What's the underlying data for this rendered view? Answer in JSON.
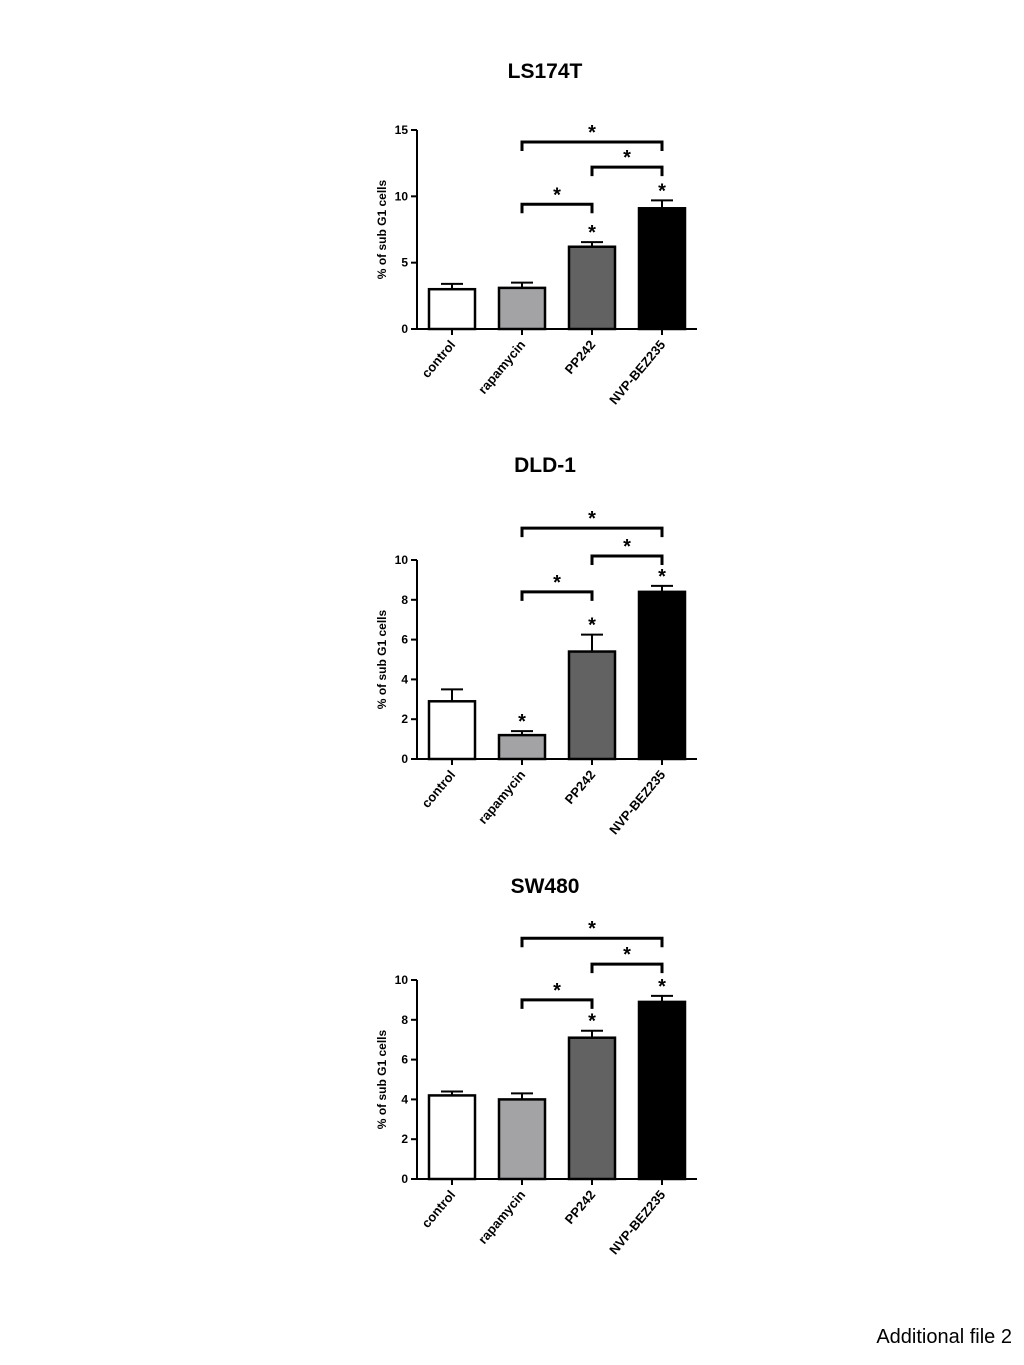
{
  "footer": {
    "label": "Additional file 2"
  },
  "colors": {
    "control": "#ffffff",
    "rapamycin": "#a3a3a6",
    "PP242": "#626262",
    "NVP-BEZ235": "#000000"
  },
  "chart_data": [
    {
      "type": "bar",
      "title": "LS174T",
      "ylabel": "% of sub G1 cells",
      "categories": [
        "control",
        "rapamycin",
        "PP242",
        "NVP-BEZ235"
      ],
      "values": [
        3.0,
        3.1,
        6.2,
        9.1
      ],
      "errors": [
        0.4,
        0.4,
        0.35,
        0.6
      ],
      "ylim": [
        0,
        15
      ],
      "yticks": [
        0,
        5,
        10,
        15
      ],
      "bar_marks": [
        "",
        "",
        "*",
        "*"
      ],
      "brackets": [
        {
          "from": 1,
          "to": 2,
          "level": 9.4,
          "label": "*"
        },
        {
          "from": 2,
          "to": 3,
          "level": 12.2,
          "label": "*"
        },
        {
          "from": 1,
          "to": 3,
          "level": 14.1,
          "label": "*"
        }
      ]
    },
    {
      "type": "bar",
      "title": "DLD-1",
      "ylabel": "% of sub G1 cells",
      "categories": [
        "control",
        "rapamycin",
        "PP242",
        "NVP-BEZ235"
      ],
      "values": [
        2.9,
        1.2,
        5.4,
        8.4
      ],
      "errors": [
        0.6,
        0.2,
        0.85,
        0.3
      ],
      "ylim": [
        0,
        10
      ],
      "yticks": [
        0,
        2,
        4,
        6,
        8,
        10
      ],
      "bar_marks": [
        "",
        "*",
        "*",
        "*"
      ],
      "brackets": [
        {
          "from": 1,
          "to": 2,
          "level": 8.4,
          "label": "*"
        },
        {
          "from": 2,
          "to": 3,
          "level": 10.2,
          "label": "*"
        },
        {
          "from": 1,
          "to": 3,
          "level": 11.6,
          "label": "*"
        }
      ]
    },
    {
      "type": "bar",
      "title": "SW480",
      "ylabel": "% of sub G1 cells",
      "categories": [
        "control",
        "rapamycin",
        "PP242",
        "NVP-BEZ235"
      ],
      "values": [
        4.2,
        4.0,
        7.1,
        8.9
      ],
      "errors": [
        0.2,
        0.3,
        0.35,
        0.3
      ],
      "ylim": [
        0,
        10
      ],
      "yticks": [
        0,
        2,
        4,
        6,
        8,
        10
      ],
      "bar_marks": [
        "",
        "",
        "*",
        "*"
      ],
      "brackets": [
        {
          "from": 1,
          "to": 2,
          "level": 9.0,
          "label": "*"
        },
        {
          "from": 2,
          "to": 3,
          "level": 10.8,
          "label": "*"
        },
        {
          "from": 1,
          "to": 3,
          "level": 12.1,
          "label": "*"
        }
      ]
    }
  ]
}
